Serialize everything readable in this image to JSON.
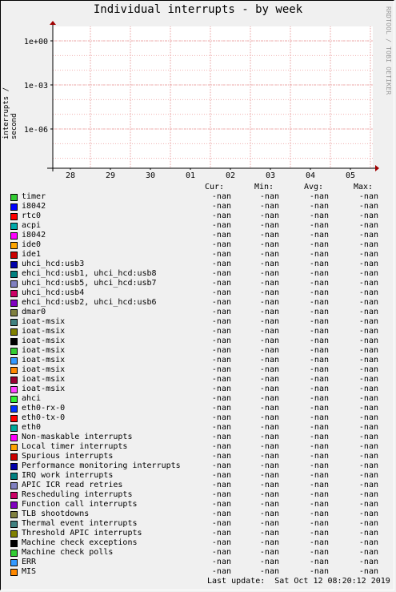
{
  "title": "Individual interrupts - by week",
  "sidebar_text": "RRDTOOL / TOBI OETIKER",
  "chart_data": {
    "type": "line",
    "title": "Individual interrupts - by week",
    "ylabel": "interrupts / second",
    "y_scale": "log",
    "y_ticks": [
      "1e+00",
      "1e-03",
      "1e-06"
    ],
    "y_tick_values": [
      1,
      0.001,
      1e-06
    ],
    "x_ticks": [
      "28",
      "29",
      "30",
      "01",
      "02",
      "03",
      "04",
      "05"
    ],
    "grid": true,
    "series": []
  },
  "legend": {
    "headers": [
      "Cur:",
      "Min:",
      "Avg:",
      "Max:"
    ],
    "items": [
      {
        "name": "timer",
        "color": "#33cc33",
        "cur": "-nan",
        "min": "-nan",
        "avg": "-nan",
        "max": "-nan"
      },
      {
        "name": "i8042",
        "color": "#0000ff",
        "cur": "-nan",
        "min": "-nan",
        "avg": "-nan",
        "max": "-nan"
      },
      {
        "name": "rtc0",
        "color": "#ff0000",
        "cur": "-nan",
        "min": "-nan",
        "avg": "-nan",
        "max": "-nan"
      },
      {
        "name": "acpi",
        "color": "#00aaaa",
        "cur": "-nan",
        "min": "-nan",
        "avg": "-nan",
        "max": "-nan"
      },
      {
        "name": "i8042",
        "color": "#ff00ff",
        "cur": "-nan",
        "min": "-nan",
        "avg": "-nan",
        "max": "-nan"
      },
      {
        "name": "ide0",
        "color": "#ffa500",
        "cur": "-nan",
        "min": "-nan",
        "avg": "-nan",
        "max": "-nan"
      },
      {
        "name": "ide1",
        "color": "#cc0000",
        "cur": "-nan",
        "min": "-nan",
        "avg": "-nan",
        "max": "-nan"
      },
      {
        "name": "uhci_hcd:usb3",
        "color": "#0000aa",
        "cur": "-nan",
        "min": "-nan",
        "avg": "-nan",
        "max": "-nan"
      },
      {
        "name": "ehci_hcd:usb1, uhci_hcd:usb8",
        "color": "#008080",
        "cur": "-nan",
        "min": "-nan",
        "avg": "-nan",
        "max": "-nan"
      },
      {
        "name": "uhci_hcd:usb5, uhci_hcd:usb7",
        "color": "#8080c0",
        "cur": "-nan",
        "min": "-nan",
        "avg": "-nan",
        "max": "-nan"
      },
      {
        "name": "uhci_hcd:usb4",
        "color": "#cc0066",
        "cur": "-nan",
        "min": "-nan",
        "avg": "-nan",
        "max": "-nan"
      },
      {
        "name": "ehci_hcd:usb2, uhci_hcd:usb6",
        "color": "#8000c0",
        "cur": "-nan",
        "min": "-nan",
        "avg": "-nan",
        "max": "-nan"
      },
      {
        "name": "dmar0",
        "color": "#808040",
        "cur": "-nan",
        "min": "-nan",
        "avg": "-nan",
        "max": "-nan"
      },
      {
        "name": "ioat-msix",
        "color": "#408080",
        "cur": "-nan",
        "min": "-nan",
        "avg": "-nan",
        "max": "-nan"
      },
      {
        "name": "ioat-msix",
        "color": "#808000",
        "cur": "-nan",
        "min": "-nan",
        "avg": "-nan",
        "max": "-nan"
      },
      {
        "name": "ioat-msix",
        "color": "#000000",
        "cur": "-nan",
        "min": "-nan",
        "avg": "-nan",
        "max": "-nan"
      },
      {
        "name": "ioat-msix",
        "color": "#33cc33",
        "cur": "-nan",
        "min": "-nan",
        "avg": "-nan",
        "max": "-nan"
      },
      {
        "name": "ioat-msix",
        "color": "#3399ff",
        "cur": "-nan",
        "min": "-nan",
        "avg": "-nan",
        "max": "-nan"
      },
      {
        "name": "ioat-msix",
        "color": "#ff8800",
        "cur": "-nan",
        "min": "-nan",
        "avg": "-nan",
        "max": "-nan"
      },
      {
        "name": "ioat-msix",
        "color": "#990033",
        "cur": "-nan",
        "min": "-nan",
        "avg": "-nan",
        "max": "-nan"
      },
      {
        "name": "ioat-msix",
        "color": "#ff44ff",
        "cur": "-nan",
        "min": "-nan",
        "avg": "-nan",
        "max": "-nan"
      },
      {
        "name": "ahci",
        "color": "#33ee33",
        "cur": "-nan",
        "min": "-nan",
        "avg": "-nan",
        "max": "-nan"
      },
      {
        "name": "eth0-rx-0",
        "color": "#0033ff",
        "cur": "-nan",
        "min": "-nan",
        "avg": "-nan",
        "max": "-nan"
      },
      {
        "name": "eth0-tx-0",
        "color": "#ff0000",
        "cur": "-nan",
        "min": "-nan",
        "avg": "-nan",
        "max": "-nan"
      },
      {
        "name": "eth0",
        "color": "#00aa99",
        "cur": "-nan",
        "min": "-nan",
        "avg": "-nan",
        "max": "-nan"
      },
      {
        "name": "Non-maskable interrupts",
        "color": "#ff00ff",
        "cur": "-nan",
        "min": "-nan",
        "avg": "-nan",
        "max": "-nan"
      },
      {
        "name": "Local timer interrupts",
        "color": "#ffa500",
        "cur": "-nan",
        "min": "-nan",
        "avg": "-nan",
        "max": "-nan"
      },
      {
        "name": "Spurious interrupts",
        "color": "#cc0000",
        "cur": "-nan",
        "min": "-nan",
        "avg": "-nan",
        "max": "-nan"
      },
      {
        "name": "Performance monitoring interrupts",
        "color": "#0000aa",
        "cur": "-nan",
        "min": "-nan",
        "avg": "-nan",
        "max": "-nan"
      },
      {
        "name": "IRQ work interrupts",
        "color": "#008080",
        "cur": "-nan",
        "min": "-nan",
        "avg": "-nan",
        "max": "-nan"
      },
      {
        "name": "APIC ICR read retries",
        "color": "#8080c0",
        "cur": "-nan",
        "min": "-nan",
        "avg": "-nan",
        "max": "-nan"
      },
      {
        "name": "Rescheduling interrupts",
        "color": "#cc0066",
        "cur": "-nan",
        "min": "-nan",
        "avg": "-nan",
        "max": "-nan"
      },
      {
        "name": "Function call interrupts",
        "color": "#8000c0",
        "cur": "-nan",
        "min": "-nan",
        "avg": "-nan",
        "max": "-nan"
      },
      {
        "name": "TLB shootdowns",
        "color": "#808040",
        "cur": "-nan",
        "min": "-nan",
        "avg": "-nan",
        "max": "-nan"
      },
      {
        "name": "Thermal event interrupts",
        "color": "#408080",
        "cur": "-nan",
        "min": "-nan",
        "avg": "-nan",
        "max": "-nan"
      },
      {
        "name": "Threshold APIC interrupts",
        "color": "#808000",
        "cur": "-nan",
        "min": "-nan",
        "avg": "-nan",
        "max": "-nan"
      },
      {
        "name": "Machine check exceptions",
        "color": "#000000",
        "cur": "-nan",
        "min": "-nan",
        "avg": "-nan",
        "max": "-nan"
      },
      {
        "name": "Machine check polls",
        "color": "#33cc33",
        "cur": "-nan",
        "min": "-nan",
        "avg": "-nan",
        "max": "-nan"
      },
      {
        "name": "ERR",
        "color": "#3399ff",
        "cur": "-nan",
        "min": "-nan",
        "avg": "-nan",
        "max": "-nan"
      },
      {
        "name": "MIS",
        "color": "#ff8800",
        "cur": "-nan",
        "min": "-nan",
        "avg": "-nan",
        "max": "-nan"
      }
    ]
  },
  "footer": "Last update:  Sat Oct 12 08:20:12 2019"
}
